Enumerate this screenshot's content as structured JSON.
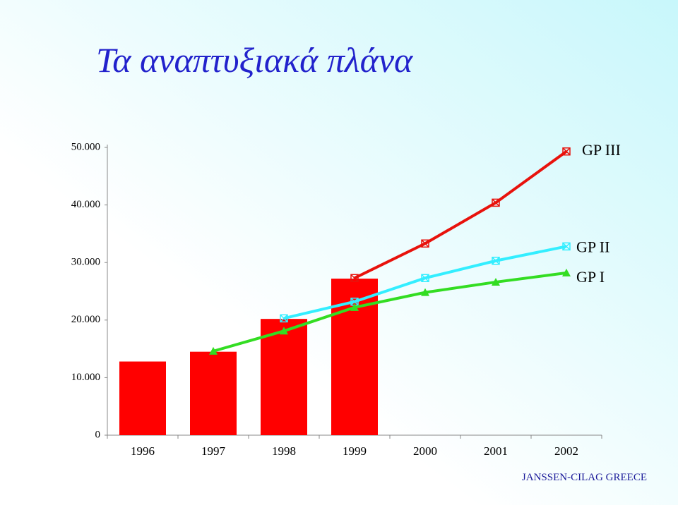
{
  "title": "Τα αναπτυξιακά πλάνα",
  "footer": "JANSSEN-CILAG GREECE",
  "chart_data": {
    "type": "bar",
    "categories": [
      "1996",
      "1997",
      "1998",
      "1999",
      "2000",
      "2001",
      "2002"
    ],
    "values": [
      12800,
      14500,
      20200,
      27200,
      null,
      null,
      null
    ],
    "color": "#ff0000",
    "series": [
      {
        "name": "GP III",
        "type": "line",
        "marker": "square-x",
        "color": "#e8120c",
        "values": [
          null,
          null,
          null,
          27300,
          33300,
          40400,
          49300
        ]
      },
      {
        "name": "GP II",
        "type": "line",
        "marker": "square-x",
        "color": "#33eeff",
        "values": [
          null,
          null,
          20300,
          23200,
          27300,
          30300,
          32800
        ]
      },
      {
        "name": "GP I",
        "type": "line",
        "marker": "triangle",
        "color": "#33dd22",
        "values": [
          null,
          14600,
          18100,
          22200,
          24800,
          26600,
          28200
        ]
      }
    ],
    "ylim": [
      0,
      50000
    ],
    "yticks": [
      0,
      {
        "value": 10000,
        "label": "10.000"
      },
      {
        "value": 20000,
        "label": "20.000"
      },
      {
        "value": 30000,
        "label": "30.000"
      },
      {
        "value": 40000,
        "label": "40.000"
      },
      {
        "value": 50000,
        "label": "50.000"
      }
    ]
  }
}
